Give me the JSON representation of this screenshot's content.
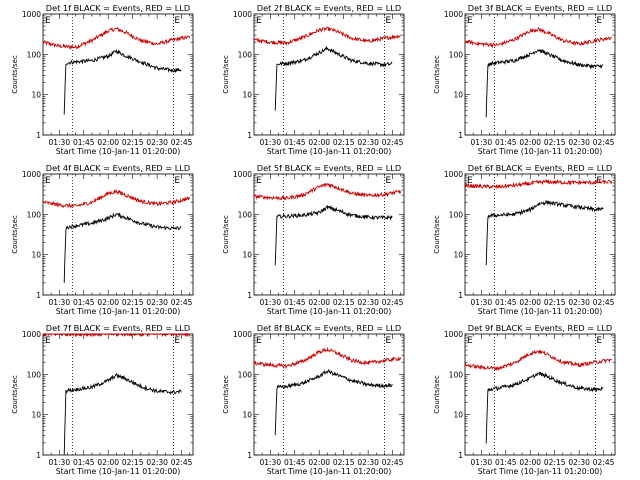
{
  "figure": {
    "x_tick_labels": [
      "01:30",
      "01:45",
      "02:00",
      "02:15",
      "02:30",
      "02:45"
    ],
    "x_tick_minutes": [
      90,
      105,
      120,
      135,
      150,
      165
    ],
    "y_tick_labels": [
      "1",
      "10",
      "100",
      "1000"
    ],
    "ylabel": "Counts/sec",
    "xlabel": "Start Time (10-Jan-11 01:20:00)",
    "corner_label_left": "E",
    "corner_label_right": "E"
  },
  "chart_data": [
    {
      "type": "line",
      "title": "Det 1f BLACK = Events, RED = LLD",
      "xlabel": "Start Time (10-Jan-11 01:20:00)",
      "ylabel": "Counts/sec",
      "y_scale": "log",
      "ylim": [
        1,
        1000
      ],
      "x_minutes_range": [
        80,
        172
      ],
      "dotted_lines_minutes": [
        98,
        160
      ],
      "series": [
        {
          "color": "#cc0000",
          "x": [
            80,
            90,
            100,
            110,
            120,
            125,
            130,
            140,
            150,
            160,
            170
          ],
          "values": [
            200,
            160,
            150,
            220,
            380,
            430,
            360,
            220,
            180,
            230,
            270
          ]
        },
        {
          "color": "#000000",
          "x": [
            93,
            94,
            95,
            100,
            110,
            120,
            125,
            130,
            140,
            150,
            160,
            165
          ],
          "values": [
            3,
            60,
            62,
            65,
            70,
            90,
            120,
            95,
            65,
            45,
            40,
            42
          ]
        }
      ]
    },
    {
      "type": "line",
      "title": "Det 2f BLACK = Events, RED = LLD",
      "xlabel": "Start Time (10-Jan-11 01:20:00)",
      "ylabel": "Counts/sec",
      "y_scale": "log",
      "ylim": [
        1,
        1000
      ],
      "x_minutes_range": [
        80,
        172
      ],
      "dotted_lines_minutes": [
        98,
        160
      ],
      "series": [
        {
          "color": "#cc0000",
          "x": [
            80,
            90,
            100,
            110,
            120,
            125,
            130,
            140,
            150,
            160,
            170
          ],
          "values": [
            230,
            200,
            190,
            260,
            400,
            430,
            380,
            250,
            210,
            250,
            290
          ]
        },
        {
          "color": "#000000",
          "x": [
            93,
            94,
            95,
            100,
            110,
            120,
            125,
            130,
            140,
            150,
            160,
            165
          ],
          "values": [
            4,
            55,
            58,
            60,
            70,
            110,
            140,
            110,
            70,
            60,
            55,
            58
          ]
        }
      ]
    },
    {
      "type": "line",
      "title": "Det 3f BLACK = Events, RED = LLD",
      "xlabel": "Start Time (10-Jan-11 01:20:00)",
      "ylabel": "Counts/sec",
      "y_scale": "log",
      "ylim": [
        1,
        1000
      ],
      "x_minutes_range": [
        80,
        172
      ],
      "dotted_lines_minutes": [
        98,
        160
      ],
      "series": [
        {
          "color": "#cc0000",
          "x": [
            80,
            90,
            100,
            110,
            120,
            125,
            130,
            140,
            150,
            160,
            170
          ],
          "values": [
            210,
            180,
            170,
            230,
            380,
            420,
            350,
            220,
            180,
            220,
            260
          ]
        },
        {
          "color": "#000000",
          "x": [
            93,
            94,
            95,
            100,
            110,
            120,
            125,
            130,
            140,
            150,
            160,
            165
          ],
          "values": [
            3,
            55,
            58,
            62,
            70,
            100,
            130,
            105,
            70,
            55,
            50,
            52
          ]
        }
      ]
    },
    {
      "type": "line",
      "title": "Det 4f BLACK = Events, RED = LLD",
      "xlabel": "Start Time (10-Jan-11 01:20:00)",
      "ylabel": "Counts/sec",
      "y_scale": "log",
      "ylim": [
        1,
        1000
      ],
      "x_minutes_range": [
        80,
        172
      ],
      "dotted_lines_minutes": [
        98,
        160
      ],
      "series": [
        {
          "color": "#cc0000",
          "x": [
            80,
            90,
            100,
            110,
            120,
            125,
            130,
            140,
            150,
            160,
            170
          ],
          "values": [
            200,
            170,
            160,
            200,
            330,
            370,
            310,
            210,
            180,
            200,
            250
          ]
        },
        {
          "color": "#000000",
          "x": [
            93,
            94,
            95,
            100,
            110,
            120,
            125,
            130,
            140,
            150,
            160,
            165
          ],
          "values": [
            2,
            45,
            48,
            52,
            60,
            80,
            100,
            85,
            60,
            48,
            45,
            46
          ]
        }
      ]
    },
    {
      "type": "line",
      "title": "Det 5f BLACK = Events, RED = LLD",
      "xlabel": "Start Time (10-Jan-11 01:20:00)",
      "ylabel": "Counts/sec",
      "y_scale": "log",
      "ylim": [
        1,
        1000
      ],
      "x_minutes_range": [
        80,
        172
      ],
      "dotted_lines_minutes": [
        98,
        160
      ],
      "series": [
        {
          "color": "#cc0000",
          "x": [
            80,
            90,
            100,
            110,
            120,
            125,
            130,
            140,
            150,
            160,
            170
          ],
          "values": [
            280,
            260,
            250,
            300,
            480,
            560,
            480,
            330,
            290,
            310,
            370
          ]
        },
        {
          "color": "#000000",
          "x": [
            93,
            94,
            95,
            100,
            110,
            120,
            125,
            130,
            140,
            150,
            160,
            165
          ],
          "values": [
            5,
            85,
            88,
            90,
            95,
            110,
            150,
            130,
            95,
            85,
            82,
            85
          ]
        }
      ]
    },
    {
      "type": "line",
      "title": "Det 6f BLACK = Events, RED = LLD",
      "xlabel": "Start Time (10-Jan-11 01:20:00)",
      "ylabel": "Counts/sec",
      "y_scale": "log",
      "ylim": [
        1,
        1000
      ],
      "x_minutes_range": [
        80,
        172
      ],
      "dotted_lines_minutes": [
        98,
        160
      ],
      "series": [
        {
          "color": "#cc0000",
          "x": [
            80,
            90,
            100,
            110,
            120,
            125,
            130,
            140,
            150,
            160,
            170
          ],
          "values": [
            520,
            490,
            480,
            520,
            580,
            620,
            640,
            620,
            610,
            620,
            640
          ]
        },
        {
          "color": "#000000",
          "x": [
            93,
            94,
            95,
            100,
            110,
            120,
            125,
            130,
            140,
            150,
            160,
            165
          ],
          "values": [
            5,
            90,
            92,
            95,
            100,
            130,
            180,
            200,
            170,
            150,
            130,
            135
          ]
        }
      ]
    },
    {
      "type": "line",
      "title": "Det 7f BLACK = Events, RED = LLD",
      "xlabel": "Start Time (10-Jan-11 01:20:00)",
      "ylabel": "Counts/sec",
      "y_scale": "log",
      "ylim": [
        1,
        1000
      ],
      "x_minutes_range": [
        80,
        172
      ],
      "dotted_lines_minutes": [
        98,
        160
      ],
      "series": [
        {
          "color": "#cc0000",
          "x": [
            80,
            90,
            100,
            110,
            120,
            125,
            130,
            140,
            150,
            160,
            170
          ],
          "values": [
            1000,
            1000,
            1000,
            1000,
            1000,
            1000,
            1000,
            1000,
            1000,
            1000,
            1000
          ]
        },
        {
          "color": "#000000",
          "x": [
            93,
            94,
            95,
            100,
            110,
            120,
            125,
            130,
            140,
            150,
            160,
            165
          ],
          "values": [
            1,
            38,
            40,
            42,
            48,
            70,
            95,
            80,
            50,
            38,
            36,
            38
          ]
        }
      ]
    },
    {
      "type": "line",
      "title": "Det 8f BLACK = Events, RED = LLD",
      "xlabel": "Start Time (10-Jan-11 01:20:00)",
      "ylabel": "Counts/sec",
      "y_scale": "log",
      "ylim": [
        1,
        1000
      ],
      "x_minutes_range": [
        80,
        172
      ],
      "dotted_lines_minutes": [
        98,
        160
      ],
      "series": [
        {
          "color": "#cc0000",
          "x": [
            80,
            90,
            100,
            110,
            120,
            125,
            130,
            140,
            150,
            160,
            170
          ],
          "values": [
            190,
            170,
            160,
            210,
            360,
            410,
            350,
            220,
            190,
            220,
            250
          ]
        },
        {
          "color": "#000000",
          "x": [
            93,
            94,
            95,
            100,
            110,
            120,
            125,
            130,
            140,
            150,
            160,
            165
          ],
          "values": [
            3,
            45,
            48,
            50,
            60,
            90,
            120,
            100,
            70,
            55,
            52,
            54
          ]
        }
      ]
    },
    {
      "type": "line",
      "title": "Det 9f BLACK = Events, RED = LLD",
      "xlabel": "Start Time (10-Jan-11 01:20:00)",
      "ylabel": "Counts/sec",
      "y_scale": "log",
      "ylim": [
        1,
        1000
      ],
      "x_minutes_range": [
        80,
        172
      ],
      "dotted_lines_minutes": [
        98,
        160
      ],
      "series": [
        {
          "color": "#cc0000",
          "x": [
            80,
            90,
            100,
            110,
            120,
            125,
            130,
            140,
            150,
            160,
            170
          ],
          "values": [
            170,
            150,
            140,
            190,
            330,
            380,
            320,
            200,
            170,
            200,
            230
          ]
        },
        {
          "color": "#000000",
          "x": [
            93,
            94,
            95,
            100,
            110,
            120,
            125,
            130,
            140,
            150,
            160,
            165
          ],
          "values": [
            2,
            40,
            42,
            45,
            55,
            80,
            105,
            90,
            60,
            45,
            42,
            44
          ]
        }
      ]
    }
  ]
}
